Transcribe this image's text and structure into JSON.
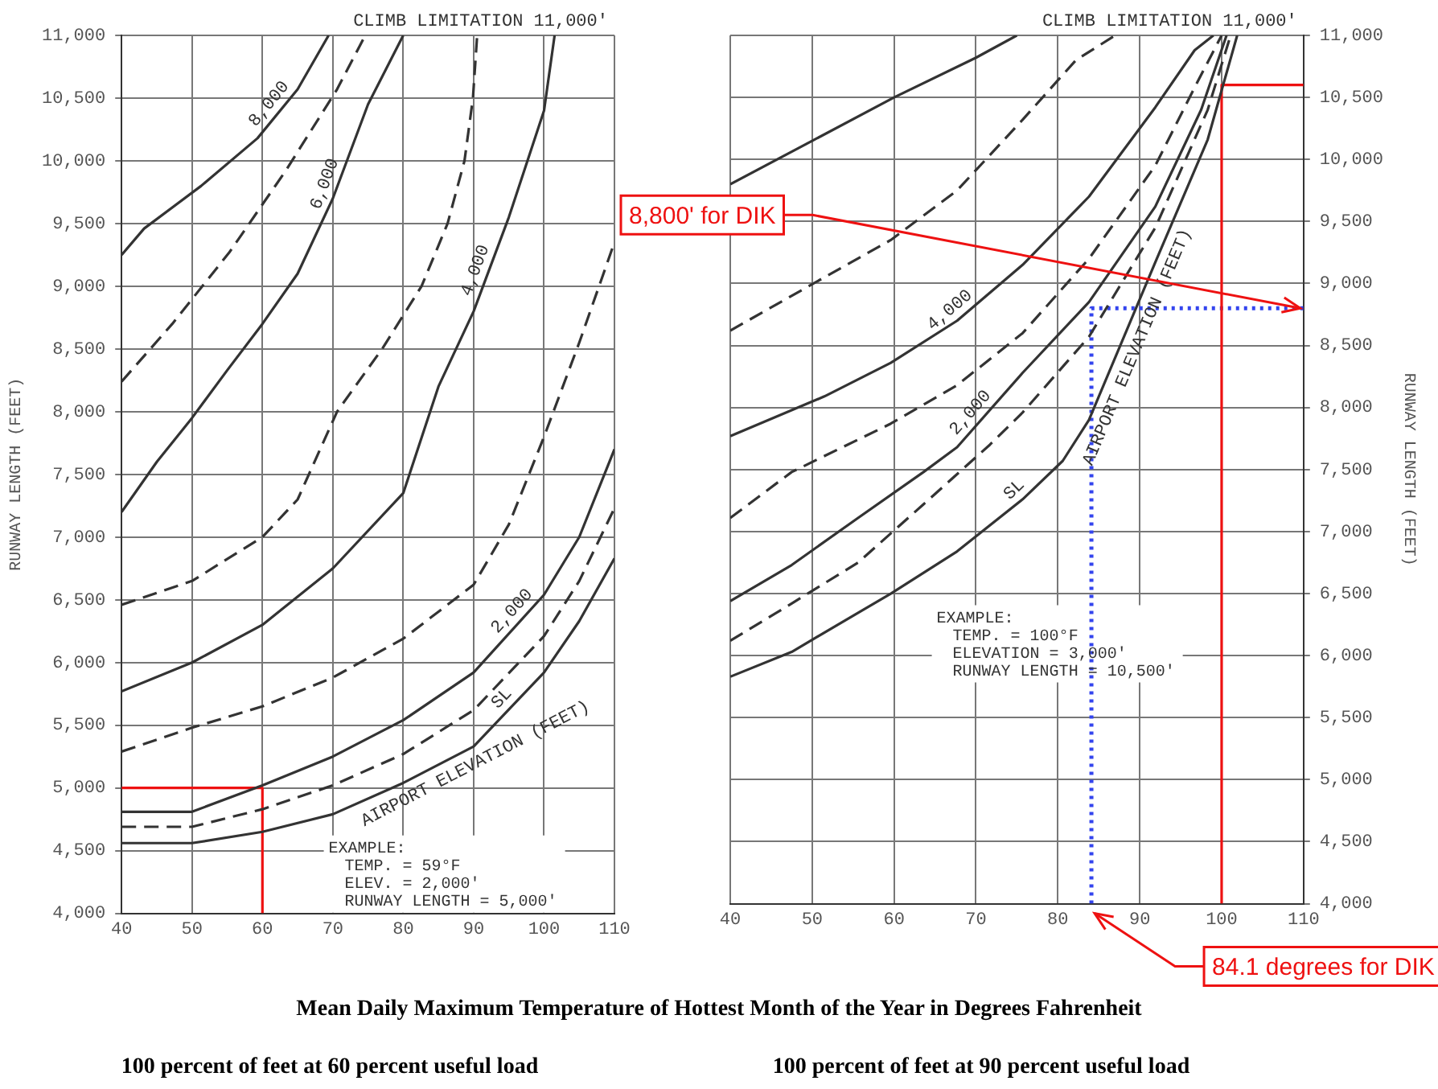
{
  "chart_data": [
    {
      "type": "line",
      "title": "100 percent of feet at 60 percent useful load",
      "xlabel": "Mean Daily Maximum Temperature of Hottest Month of the Year in Degrees Fahrenheit",
      "ylabel": "RUNWAY LENGTH (FEET)",
      "xlim": [
        40,
        110
      ],
      "ylim": [
        4000,
        11000
      ],
      "xticks": [
        40,
        50,
        60,
        70,
        80,
        90,
        100,
        110
      ],
      "yticks": [
        {
          "value": 4000,
          "label": "4,000"
        },
        {
          "value": 4500,
          "label": "4,500"
        },
        {
          "value": 5000,
          "label": "5,000"
        },
        {
          "value": 5500,
          "label": "5,500"
        },
        {
          "value": 6000,
          "label": "6,000"
        },
        {
          "value": 6500,
          "label": "6,500"
        },
        {
          "value": 7000,
          "label": "7,000"
        },
        {
          "value": 7500,
          "label": "7,500"
        },
        {
          "value": 8000,
          "label": "8,000"
        },
        {
          "value": 8500,
          "label": "8,500"
        },
        {
          "value": 9000,
          "label": "9,000"
        },
        {
          "value": 9500,
          "label": "9,500"
        },
        {
          "value": 10000,
          "label": "10,000"
        },
        {
          "value": 10500,
          "label": "10,500"
        },
        {
          "value": 11000,
          "label": "11,000"
        }
      ],
      "grid": true,
      "marker": "none",
      "series": [
        {
          "name": "SL",
          "color": "#333333",
          "line_style": "solid",
          "x": [
            40,
            50,
            60,
            70,
            80,
            90,
            100,
            105,
            110
          ],
          "values": [
            4560,
            4560,
            4650,
            4790,
            5040,
            5330,
            5920,
            6330,
            6830
          ]
        },
        {
          "color": "#333333",
          "line_style": "dashed",
          "x": [
            40,
            50,
            60,
            70,
            80,
            90,
            100,
            105,
            110
          ],
          "values": [
            4690,
            4690,
            4830,
            5020,
            5270,
            5620,
            6210,
            6650,
            7230
          ]
        },
        {
          "name": "2,000",
          "color": "#333333",
          "line_style": "solid",
          "x": [
            40,
            50,
            60,
            70,
            80,
            90,
            100,
            105,
            110
          ],
          "values": [
            4810,
            4810,
            5020,
            5250,
            5540,
            5920,
            6540,
            7000,
            7700
          ]
        },
        {
          "color": "#333333",
          "line_style": "dashed",
          "x": [
            40,
            50,
            60,
            70,
            80,
            90,
            95,
            100,
            105,
            110
          ],
          "values": [
            5290,
            5480,
            5650,
            5880,
            6190,
            6620,
            7100,
            7800,
            8550,
            9350
          ]
        },
        {
          "name": "4,000",
          "color": "#333333",
          "line_style": "solid",
          "x": [
            40,
            50,
            60,
            70,
            80,
            85,
            90,
            95,
            100,
            101.5
          ],
          "values": [
            5770,
            6000,
            6300,
            6750,
            7350,
            8200,
            8800,
            9550,
            10400,
            11000
          ]
        },
        {
          "color": "#333333",
          "line_style": "dashed",
          "x": [
            40,
            50,
            60,
            65,
            70.6,
            77,
            82.6,
            86.3,
            88.7,
            89.9,
            90.5
          ],
          "values": [
            6460,
            6650,
            7000,
            7300,
            8000,
            8500,
            9000,
            9500,
            10000,
            10500,
            11000
          ]
        },
        {
          "name": "6,000",
          "color": "#333333",
          "line_style": "solid",
          "x": [
            40,
            45,
            50,
            55,
            60,
            65,
            70,
            75,
            80
          ],
          "values": [
            7200,
            7600,
            7950,
            8330,
            8700,
            9100,
            9700,
            10450,
            11000
          ]
        },
        {
          "color": "#333333",
          "line_style": "dashed",
          "x": [
            40,
            47.2,
            55.3,
            63.3,
            70.6,
            74.6
          ],
          "values": [
            8240,
            8700,
            9270,
            9920,
            10570,
            11000
          ]
        },
        {
          "name": "8,000",
          "color": "#333333",
          "line_style": "solid",
          "x": [
            40,
            43.2,
            51.3,
            59.3,
            65,
            69.4
          ],
          "values": [
            9250,
            9460,
            9800,
            10180,
            10570,
            11000
          ]
        },
        {
          "color": "#ee1111",
          "line_style": "solid",
          "x": [
            60,
            60,
            40
          ],
          "values": [
            4000,
            5000,
            5000
          ]
        }
      ],
      "annotations": [
        "CLIMB LIMITATION 11,000'",
        "AIRPORT ELEVATION (FEET)",
        "EXAMPLE:",
        "TEMP. = 59°F",
        "ELEV. = 2,000'",
        "RUNWAY LENGTH = 5,000'"
      ]
    },
    {
      "type": "line",
      "title": "100 percent of feet at 90 percent useful load",
      "ylabel": "RUNWAY LENGTH (FEET)",
      "xlim": [
        40,
        110
      ],
      "ylim": [
        4000,
        11000
      ],
      "xticks": [
        40,
        50,
        60,
        70,
        80,
        90,
        100,
        110
      ],
      "yticks": [
        {
          "value": 4000,
          "label": "4,000"
        },
        {
          "value": 4500,
          "label": "4,500"
        },
        {
          "value": 5000,
          "label": "5,000"
        },
        {
          "value": 5500,
          "label": "5,500"
        },
        {
          "value": 6000,
          "label": "6,000"
        },
        {
          "value": 6500,
          "label": "6,500"
        },
        {
          "value": 7000,
          "label": "7,000"
        },
        {
          "value": 7500,
          "label": "7,500"
        },
        {
          "value": 8000,
          "label": "8,000"
        },
        {
          "value": 8500,
          "label": "8,500"
        },
        {
          "value": 9000,
          "label": "9,000"
        },
        {
          "value": 9500,
          "label": "9,500"
        },
        {
          "value": 10000,
          "label": "10,000"
        },
        {
          "value": 10500,
          "label": "10,500"
        },
        {
          "value": 11000,
          "label": "11,000"
        }
      ],
      "grid": true,
      "marker": "none",
      "series": [
        {
          "name": "SL",
          "color": "#333333",
          "line_style": "solid",
          "x": [
            40,
            47.5,
            59.6,
            67.7,
            75.7,
            80.6,
            83.8,
            91.9,
            98.3,
            101.9
          ],
          "values": [
            5830,
            6030,
            6500,
            6840,
            7260,
            7570,
            7900,
            9170,
            10160,
            11000
          ]
        },
        {
          "color": "#333333",
          "line_style": "dashed",
          "x": [
            40,
            47.5,
            55.6,
            63.6,
            71.7,
            75.7,
            83.8,
            91.9,
            98.3,
            101.1
          ],
          "values": [
            6120,
            6420,
            6750,
            7220,
            7700,
            7960,
            8570,
            9450,
            10400,
            11000
          ]
        },
        {
          "name": "2,000",
          "color": "#333333",
          "line_style": "solid",
          "x": [
            40,
            47.5,
            55.6,
            63.6,
            67.7,
            75.7,
            83.8,
            91.9,
            97.5,
            100.6
          ],
          "values": [
            6440,
            6730,
            7110,
            7480,
            7680,
            8280,
            8850,
            9620,
            10400,
            11000
          ]
        },
        {
          "color": "#333333",
          "line_style": "dashed",
          "x": [
            40,
            47.5,
            59.6,
            67.7,
            75.7,
            83.8,
            91.9,
            96.7,
            100
          ],
          "values": [
            7110,
            7480,
            7870,
            8180,
            8600,
            9200,
            9950,
            10580,
            11000
          ]
        },
        {
          "name": "4,000",
          "color": "#333333",
          "line_style": "solid",
          "x": [
            40,
            51.5,
            59.6,
            67.7,
            75.7,
            83.8,
            91.9,
            96.7,
            99
          ],
          "values": [
            7770,
            8090,
            8360,
            8700,
            9150,
            9700,
            10420,
            10880,
            11000
          ]
        },
        {
          "color": "#333333",
          "line_style": "dashed",
          "x": [
            40,
            51.5,
            59.6,
            67.7,
            75.7,
            82.2,
            87
          ],
          "values": [
            8620,
            9050,
            9350,
            9750,
            10320,
            10800,
            11000
          ]
        },
        {
          "color": "#333333",
          "line_style": "solid",
          "x": [
            40,
            50,
            60,
            70,
            75
          ],
          "values": [
            9800,
            10150,
            10500,
            10820,
            11000
          ]
        },
        {
          "color": "#ee1111",
          "line_style": "solid",
          "x": [
            100,
            100,
            110
          ],
          "values": [
            4000,
            10600,
            10600
          ]
        },
        {
          "color": "#3344ee",
          "line_style": "dotted",
          "x": [
            84.1,
            84.1,
            110
          ],
          "values": [
            4000,
            8800,
            8800
          ]
        }
      ],
      "annotations": [
        "CLIMB LIMITATION 11,000'",
        "AIRPORT ELEVATION (FEET)",
        "EXAMPLE:",
        "TEMP. = 100°F",
        "ELEVATION = 3,000'",
        "RUNWAY LENGTH = 10,500'",
        {
          "text": "8,800' for DIK",
          "x": 110,
          "y": 8800
        },
        {
          "text": "84.1 degrees for DIK",
          "x": 84.1,
          "y": 4000
        }
      ]
    }
  ]
}
